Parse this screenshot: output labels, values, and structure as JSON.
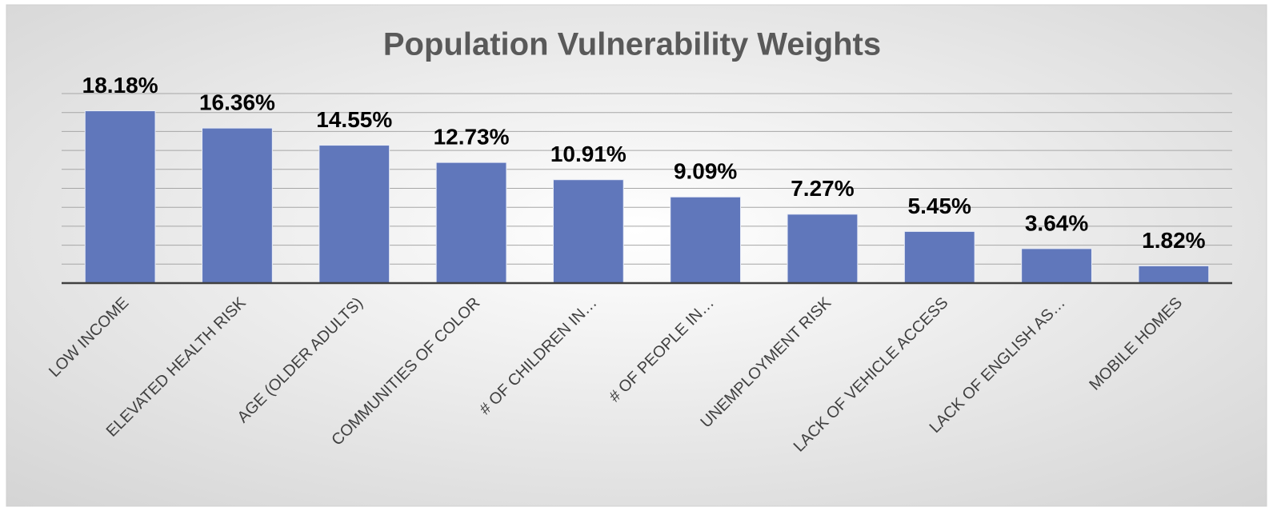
{
  "chart_data": {
    "type": "bar",
    "title": "Population Vulnerability Weights",
    "categories": [
      "LOW INCOME",
      "ELEVATED HEALTH RISK",
      "AGE (OLDER ADULTS)",
      "COMMUNITIES OF COLOR",
      "# OF CHILDREN IN…",
      "# OF PEOPLE IN…",
      "UNEMPLOYMENT RISK",
      "LACK OF VEHICLE ACCESS",
      "LACK OF ENGLISH AS…",
      "MOBILE HOMES"
    ],
    "values": [
      18.18,
      16.36,
      14.55,
      12.73,
      10.91,
      9.09,
      7.27,
      5.45,
      3.64,
      1.82
    ],
    "value_labels": [
      "18.18%",
      "16.36%",
      "14.55%",
      "12.73%",
      "10.91%",
      "9.09%",
      "7.27%",
      "5.45%",
      "3.64%",
      "1.82%"
    ],
    "color": "#6077bb",
    "ylim": [
      0,
      20
    ],
    "yticks": [
      0,
      2,
      4,
      6,
      8,
      10,
      12,
      14,
      16,
      18,
      20
    ],
    "grid": true
  }
}
